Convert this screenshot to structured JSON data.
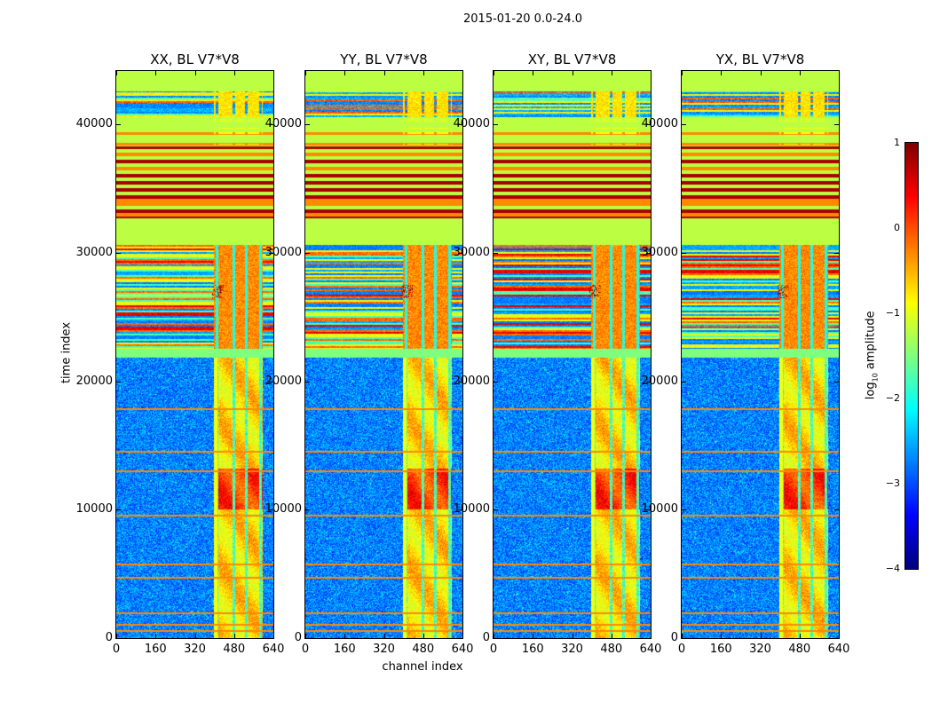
{
  "chart_data": {
    "type": "heatmap",
    "title": "2015-01-20 0.0-24.0",
    "xlabel": "channel index",
    "ylabel": "time index",
    "xlim": [
      0,
      640
    ],
    "ylim": [
      0,
      44150
    ],
    "xticks": [
      "0",
      "160",
      "320",
      "480",
      "640"
    ],
    "xtick_values": [
      0,
      160,
      320,
      480,
      640
    ],
    "yticks": [
      "0",
      "10000",
      "20000",
      "30000",
      "40000"
    ],
    "ytick_values": [
      0,
      10000,
      20000,
      30000,
      40000
    ],
    "panels": [
      {
        "title": "XX, BL V7*V8"
      },
      {
        "title": "YY, BL V7*V8"
      },
      {
        "title": "XY, BL V7*V8"
      },
      {
        "title": "YX, BL V7*V8"
      }
    ],
    "colorbar": {
      "label_prefix": "log",
      "label_sub": "10",
      "label_suffix": " amplitude",
      "colormap": "jet",
      "range": [
        -4,
        1
      ],
      "ticks": [
        "1",
        "0",
        "−1",
        "−2",
        "−3",
        "−4"
      ],
      "tick_values": [
        1,
        0,
        -1,
        -2,
        -3,
        -4
      ]
    },
    "time_segments": [
      {
        "t0": 0,
        "t1": 22500,
        "kind": "noise",
        "level": -3.0
      },
      {
        "t0": 22500,
        "t1": 30600,
        "kind": "stripes",
        "level": -1.5
      },
      {
        "t0": 30600,
        "t1": 32700,
        "kind": "flat",
        "level": -1.2
      },
      {
        "t0": 32700,
        "t1": 38300,
        "kind": "alternating",
        "level": 0.8
      },
      {
        "t0": 38300,
        "t1": 40600,
        "kind": "flat-lines",
        "level": -1.2
      },
      {
        "t0": 40600,
        "t1": 42600,
        "kind": "noise-stripes",
        "level": -2.6
      },
      {
        "t0": 42600,
        "t1": 44150,
        "kind": "flat",
        "level": -1.2
      }
    ],
    "rfi_lines_time": [
      500,
      1000,
      1900,
      4700,
      5700,
      9500,
      13000,
      14500,
      17800,
      22400
    ],
    "bright_channel_band": [
      400,
      600
    ],
    "bright_band_gaps": [
      410,
      480,
      530,
      590
    ],
    "hot_time_range": [
      10000,
      13200
    ]
  }
}
